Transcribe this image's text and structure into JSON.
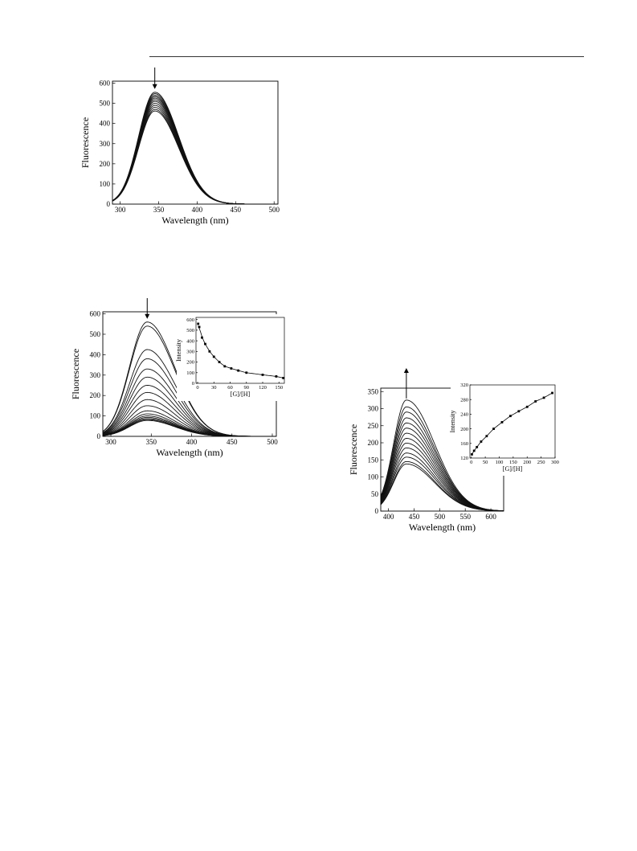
{
  "chart_data": [
    {
      "type": "line",
      "title": "",
      "xlabel": "Wavelength (nm)",
      "ylabel": "Fluorescence",
      "xlim": [
        290,
        505
      ],
      "ylim": [
        0,
        610
      ],
      "xticks": [
        300,
        350,
        400,
        450,
        500
      ],
      "yticks": [
        0,
        100,
        200,
        300,
        400,
        500,
        600
      ],
      "peak_x": 345,
      "sigma_left": 21,
      "sigma_right": 31,
      "series": [
        {
          "peak": 555
        },
        {
          "peak": 548
        },
        {
          "peak": 540
        },
        {
          "peak": 533
        },
        {
          "peak": 526
        },
        {
          "peak": 518
        },
        {
          "peak": 510
        },
        {
          "peak": 500
        },
        {
          "peak": 490
        },
        {
          "peak": 480
        },
        {
          "peak": 470
        },
        {
          "peak": 462
        }
      ],
      "arrow": {
        "x": 345,
        "direction": "down"
      }
    },
    {
      "type": "line",
      "title": "",
      "xlabel": "Wavelength (nm)",
      "ylabel": "Fluorescence",
      "xlim": [
        290,
        505
      ],
      "ylim": [
        0,
        610
      ],
      "xticks": [
        300,
        350,
        400,
        450,
        500
      ],
      "yticks": [
        0,
        100,
        200,
        300,
        400,
        500,
        600
      ],
      "peak_x": 345,
      "sigma_left": 22,
      "sigma_right": 34,
      "series": [
        {
          "peak": 560
        },
        {
          "peak": 540
        },
        {
          "peak": 425
        },
        {
          "peak": 380
        },
        {
          "peak": 330
        },
        {
          "peak": 290
        },
        {
          "peak": 250
        },
        {
          "peak": 215
        },
        {
          "peak": 180
        },
        {
          "peak": 150
        },
        {
          "peak": 125
        },
        {
          "peak": 110
        },
        {
          "peak": 100
        },
        {
          "peak": 93
        },
        {
          "peak": 87
        },
        {
          "peak": 82
        },
        {
          "peak": 78
        }
      ],
      "arrow": {
        "x": 345,
        "direction": "down"
      },
      "inset": {
        "type": "scatter",
        "xlabel": "[G]/[H]",
        "ylabel": "Intensity",
        "xlim": [
          -3,
          160
        ],
        "ylim": [
          0,
          620
        ],
        "xticks": [
          0,
          30,
          60,
          90,
          120,
          150
        ],
        "yticks": [
          0,
          100,
          200,
          300,
          400,
          500,
          600
        ],
        "points": [
          [
            1,
            560
          ],
          [
            3,
            530
          ],
          [
            8,
            430
          ],
          [
            14,
            370
          ],
          [
            22,
            300
          ],
          [
            30,
            250
          ],
          [
            40,
            200
          ],
          [
            50,
            160
          ],
          [
            62,
            140
          ],
          [
            75,
            120
          ],
          [
            90,
            100
          ],
          [
            120,
            80
          ],
          [
            145,
            65
          ],
          [
            158,
            50
          ]
        ],
        "fit": "decay"
      }
    },
    {
      "type": "line",
      "title": "",
      "xlabel": "Wavelength (nm)",
      "ylabel": "Fluorescence",
      "xlim": [
        385,
        625
      ],
      "ylim": [
        0,
        360
      ],
      "xticks": [
        400,
        450,
        500,
        550,
        600
      ],
      "yticks": [
        0,
        50,
        100,
        150,
        200,
        250,
        300,
        350
      ],
      "peak_x": 435,
      "sigma_left": 25,
      "sigma_right": 55,
      "series": [
        {
          "peak": 325
        },
        {
          "peak": 305
        },
        {
          "peak": 290
        },
        {
          "peak": 273
        },
        {
          "peak": 258
        },
        {
          "peak": 243
        },
        {
          "peak": 228
        },
        {
          "peak": 213
        },
        {
          "peak": 199
        },
        {
          "peak": 185
        },
        {
          "peak": 170
        },
        {
          "peak": 158
        },
        {
          "peak": 145
        },
        {
          "peak": 138
        }
      ],
      "arrow": {
        "x": 435,
        "direction": "up"
      },
      "inset": {
        "type": "scatter",
        "xlabel": "[G]/[H]",
        "ylabel": "Intensity",
        "xlim": [
          -5,
          300
        ],
        "ylim": [
          120,
          320
        ],
        "xticks": [
          0,
          50,
          100,
          150,
          200,
          250,
          300
        ],
        "yticks": [
          120,
          160,
          200,
          240,
          280,
          320
        ],
        "points": [
          [
            2,
            130
          ],
          [
            10,
            140
          ],
          [
            20,
            150
          ],
          [
            35,
            165
          ],
          [
            55,
            180
          ],
          [
            80,
            200
          ],
          [
            110,
            218
          ],
          [
            140,
            235
          ],
          [
            170,
            248
          ],
          [
            200,
            260
          ],
          [
            230,
            275
          ],
          [
            260,
            285
          ],
          [
            290,
            298
          ]
        ],
        "fit": "growth"
      }
    }
  ]
}
